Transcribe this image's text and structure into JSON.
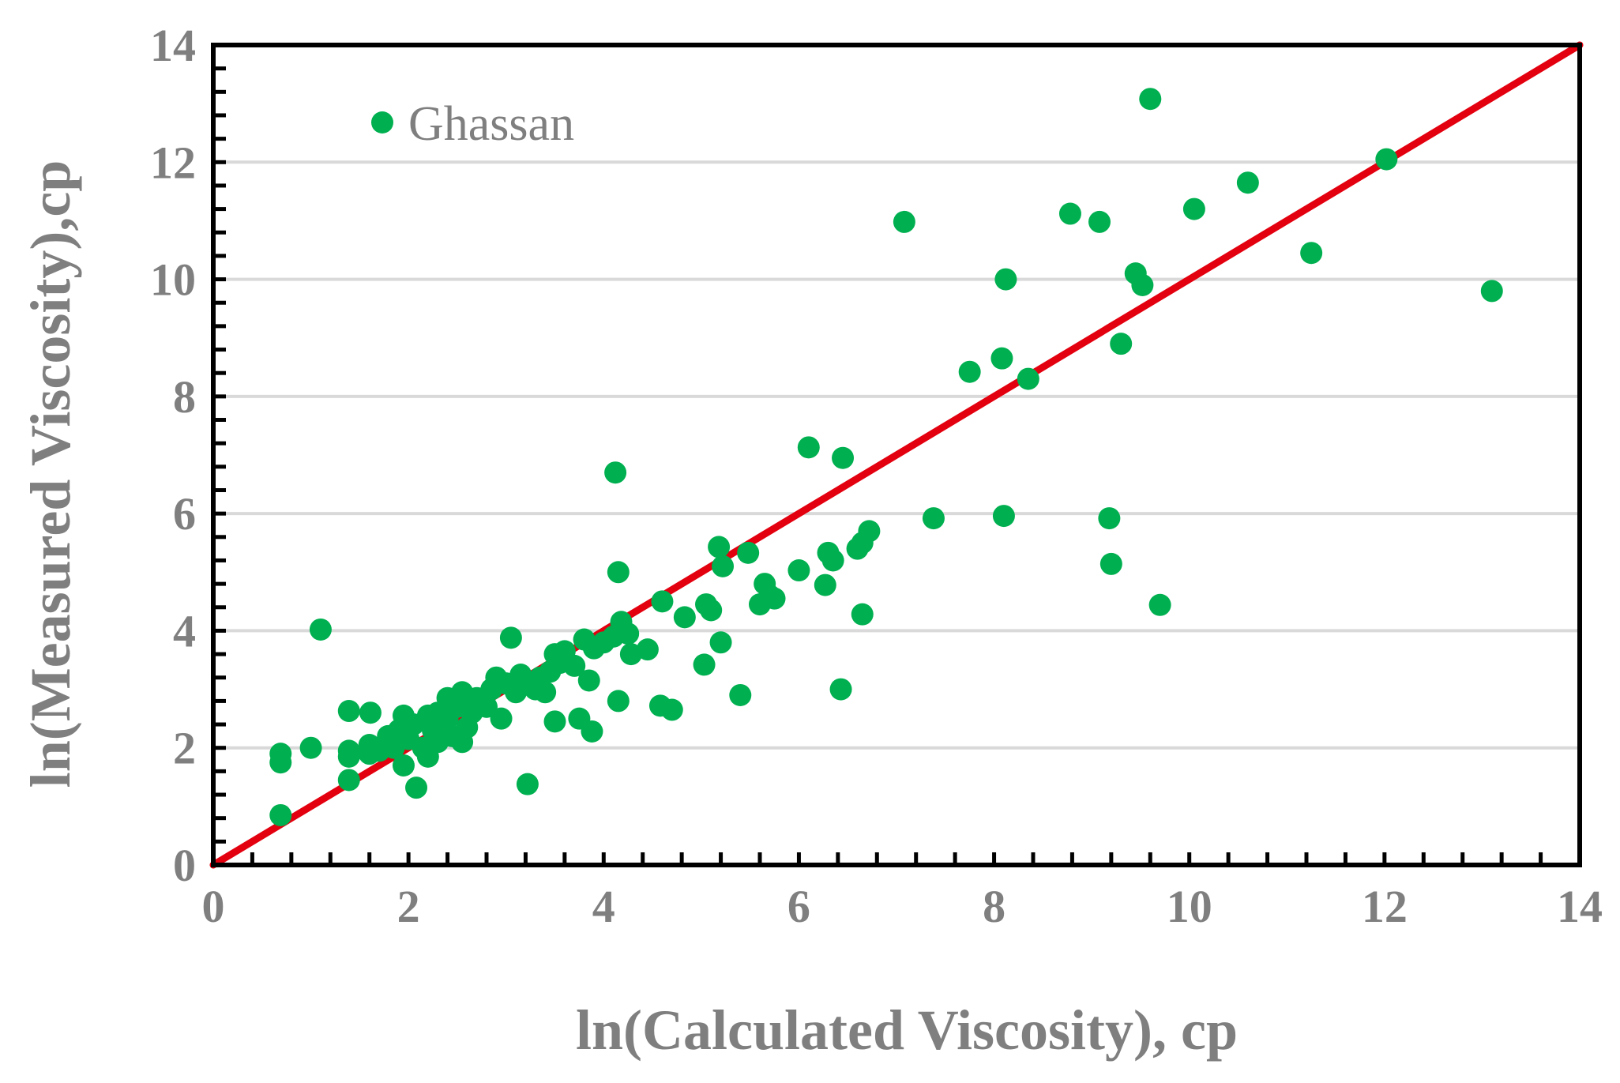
{
  "chart_data": {
    "type": "scatter",
    "xlabel": "ln(Calculated Viscosity), cp",
    "ylabel": "ln(Measured Viscosity),cp",
    "xlim": [
      0,
      14
    ],
    "ylim": [
      0,
      14
    ],
    "xticks": [
      "0",
      "2",
      "4",
      "6",
      "8",
      "10",
      "12",
      "14"
    ],
    "yticks": [
      "0",
      "2",
      "4",
      "6",
      "8",
      "10",
      "12",
      "14"
    ],
    "gridlines": "horizontal",
    "legend_position": "top-left",
    "series": [
      {
        "name": "Ghassan",
        "color": "#00b050",
        "points": [
          [
            0.69,
            0.85
          ],
          [
            0.69,
            1.75
          ],
          [
            0.69,
            1.9
          ],
          [
            1.0,
            2.0
          ],
          [
            1.1,
            4.02
          ],
          [
            1.39,
            1.45
          ],
          [
            1.39,
            1.85
          ],
          [
            1.39,
            1.95
          ],
          [
            1.39,
            2.63
          ],
          [
            1.6,
            1.9
          ],
          [
            1.6,
            2.05
          ],
          [
            1.61,
            2.6
          ],
          [
            1.7,
            1.95
          ],
          [
            1.79,
            2.2
          ],
          [
            1.85,
            2.0
          ],
          [
            1.9,
            2.3
          ],
          [
            1.95,
            1.7
          ],
          [
            1.95,
            2.55
          ],
          [
            2.0,
            2.15
          ],
          [
            2.05,
            2.4
          ],
          [
            2.08,
            1.32
          ],
          [
            2.15,
            2.0
          ],
          [
            2.2,
            1.85
          ],
          [
            2.2,
            2.55
          ],
          [
            2.25,
            2.3
          ],
          [
            2.3,
            2.1
          ],
          [
            2.3,
            2.6
          ],
          [
            2.4,
            2.5
          ],
          [
            2.4,
            2.85
          ],
          [
            2.45,
            2.2
          ],
          [
            2.5,
            2.7
          ],
          [
            2.55,
            2.1
          ],
          [
            2.55,
            2.95
          ],
          [
            2.6,
            2.35
          ],
          [
            2.65,
            2.6
          ],
          [
            2.7,
            2.85
          ],
          [
            2.8,
            2.7
          ],
          [
            2.85,
            3.0
          ],
          [
            2.9,
            3.2
          ],
          [
            2.95,
            2.5
          ],
          [
            3.0,
            3.1
          ],
          [
            3.05,
            3.88
          ],
          [
            3.1,
            2.95
          ],
          [
            3.15,
            3.25
          ],
          [
            3.2,
            3.1
          ],
          [
            3.22,
            1.38
          ],
          [
            3.3,
            3.0
          ],
          [
            3.35,
            3.2
          ],
          [
            3.4,
            2.95
          ],
          [
            3.45,
            3.3
          ],
          [
            3.5,
            2.45
          ],
          [
            3.5,
            3.6
          ],
          [
            3.55,
            3.45
          ],
          [
            3.6,
            3.65
          ],
          [
            3.7,
            3.4
          ],
          [
            3.75,
            2.5
          ],
          [
            3.8,
            3.85
          ],
          [
            3.85,
            3.15
          ],
          [
            3.88,
            2.28
          ],
          [
            3.9,
            3.7
          ],
          [
            4.0,
            3.8
          ],
          [
            4.1,
            3.9
          ],
          [
            4.12,
            6.7
          ],
          [
            4.15,
            2.8
          ],
          [
            4.15,
            5.0
          ],
          [
            4.18,
            4.15
          ],
          [
            4.25,
            3.95
          ],
          [
            4.28,
            3.6
          ],
          [
            4.45,
            3.68
          ],
          [
            4.58,
            2.72
          ],
          [
            4.6,
            4.5
          ],
          [
            4.7,
            2.65
          ],
          [
            4.83,
            4.23
          ],
          [
            5.03,
            3.42
          ],
          [
            5.05,
            4.45
          ],
          [
            5.1,
            4.35
          ],
          [
            5.18,
            5.43
          ],
          [
            5.2,
            3.8
          ],
          [
            5.22,
            5.1
          ],
          [
            5.4,
            2.9
          ],
          [
            5.48,
            5.33
          ],
          [
            5.6,
            4.45
          ],
          [
            5.65,
            4.8
          ],
          [
            5.7,
            4.6
          ],
          [
            5.75,
            4.55
          ],
          [
            6.0,
            5.03
          ],
          [
            6.1,
            7.13
          ],
          [
            6.27,
            4.78
          ],
          [
            6.3,
            5.33
          ],
          [
            6.35,
            5.2
          ],
          [
            6.43,
            3.0
          ],
          [
            6.45,
            6.95
          ],
          [
            6.6,
            5.4
          ],
          [
            6.65,
            4.28
          ],
          [
            6.65,
            5.5
          ],
          [
            6.72,
            5.7
          ],
          [
            7.08,
            10.98
          ],
          [
            7.38,
            5.92
          ],
          [
            7.75,
            8.42
          ],
          [
            8.08,
            8.65
          ],
          [
            8.1,
            5.96
          ],
          [
            8.12,
            10.0
          ],
          [
            8.35,
            8.3
          ],
          [
            8.78,
            11.12
          ],
          [
            9.08,
            10.98
          ],
          [
            9.18,
            5.92
          ],
          [
            9.2,
            5.14
          ],
          [
            9.3,
            8.9
          ],
          [
            9.45,
            10.1
          ],
          [
            9.52,
            9.9
          ],
          [
            9.6,
            13.08
          ],
          [
            9.7,
            4.44
          ],
          [
            10.05,
            11.2
          ],
          [
            10.6,
            11.65
          ],
          [
            11.25,
            10.45
          ],
          [
            12.02,
            12.05
          ],
          [
            13.1,
            9.8
          ]
        ]
      }
    ],
    "reference_line": {
      "name": "1:1 line",
      "color": "#e3000f",
      "points": [
        [
          0,
          0
        ],
        [
          14,
          14
        ]
      ]
    }
  }
}
